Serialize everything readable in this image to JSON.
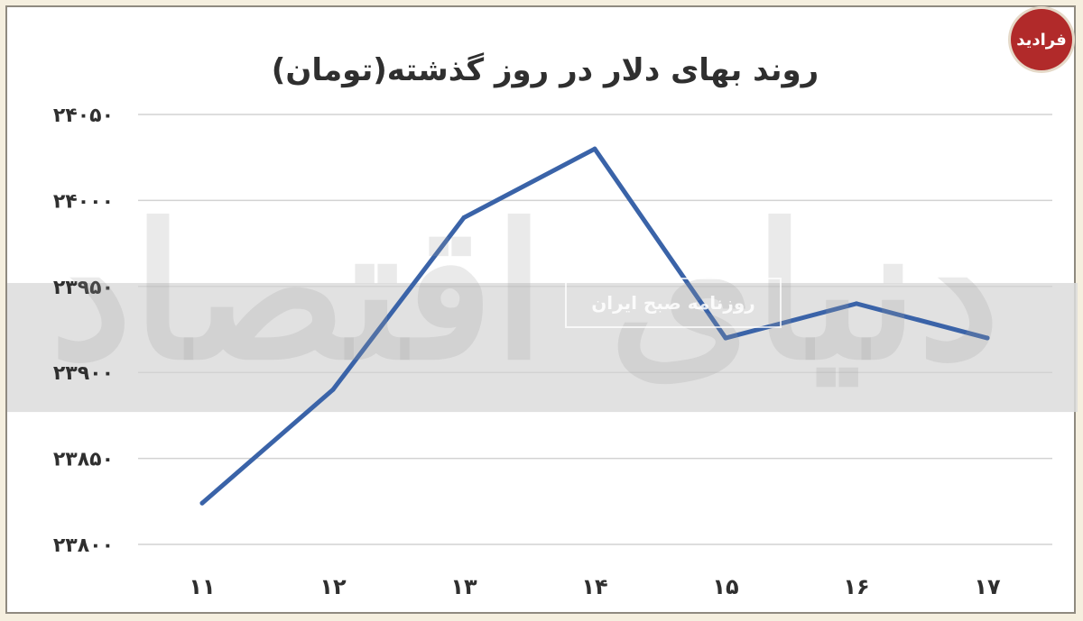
{
  "logo_text": "فرادید",
  "watermark": {
    "main_text": "دنیای اقتصاد",
    "sub_text": "روزنامه صبح ایران"
  },
  "chart_data": {
    "type": "line",
    "title": "روند بهای دلار در روز گذشته(تومان)",
    "xlabel": "",
    "ylabel": "",
    "categories": [
      "۱۱",
      "۱۲",
      "۱۳",
      "۱۴",
      "۱۵",
      "۱۶",
      "۱۷"
    ],
    "values": [
      23824,
      23890,
      23990,
      24030,
      23920,
      23940,
      23920
    ],
    "y_ticks": [
      {
        "value": 23800,
        "label": "۲۳۸۰۰"
      },
      {
        "value": 23850,
        "label": "۲۳۸۵۰"
      },
      {
        "value": 23900,
        "label": "۲۳۹۰۰"
      },
      {
        "value": 23950,
        "label": "۲۳۹۵۰"
      },
      {
        "value": 24000,
        "label": "۲۴۰۰۰"
      },
      {
        "value": 24050,
        "label": "۲۴۰۵۰"
      }
    ],
    "ylim": [
      23800,
      24050
    ],
    "grid": true,
    "legend": "none",
    "colors": {
      "line": "#3a63a8",
      "grid": "#d2d2d2",
      "band": "#dcdcdc",
      "text": "#2f2f2f"
    }
  }
}
